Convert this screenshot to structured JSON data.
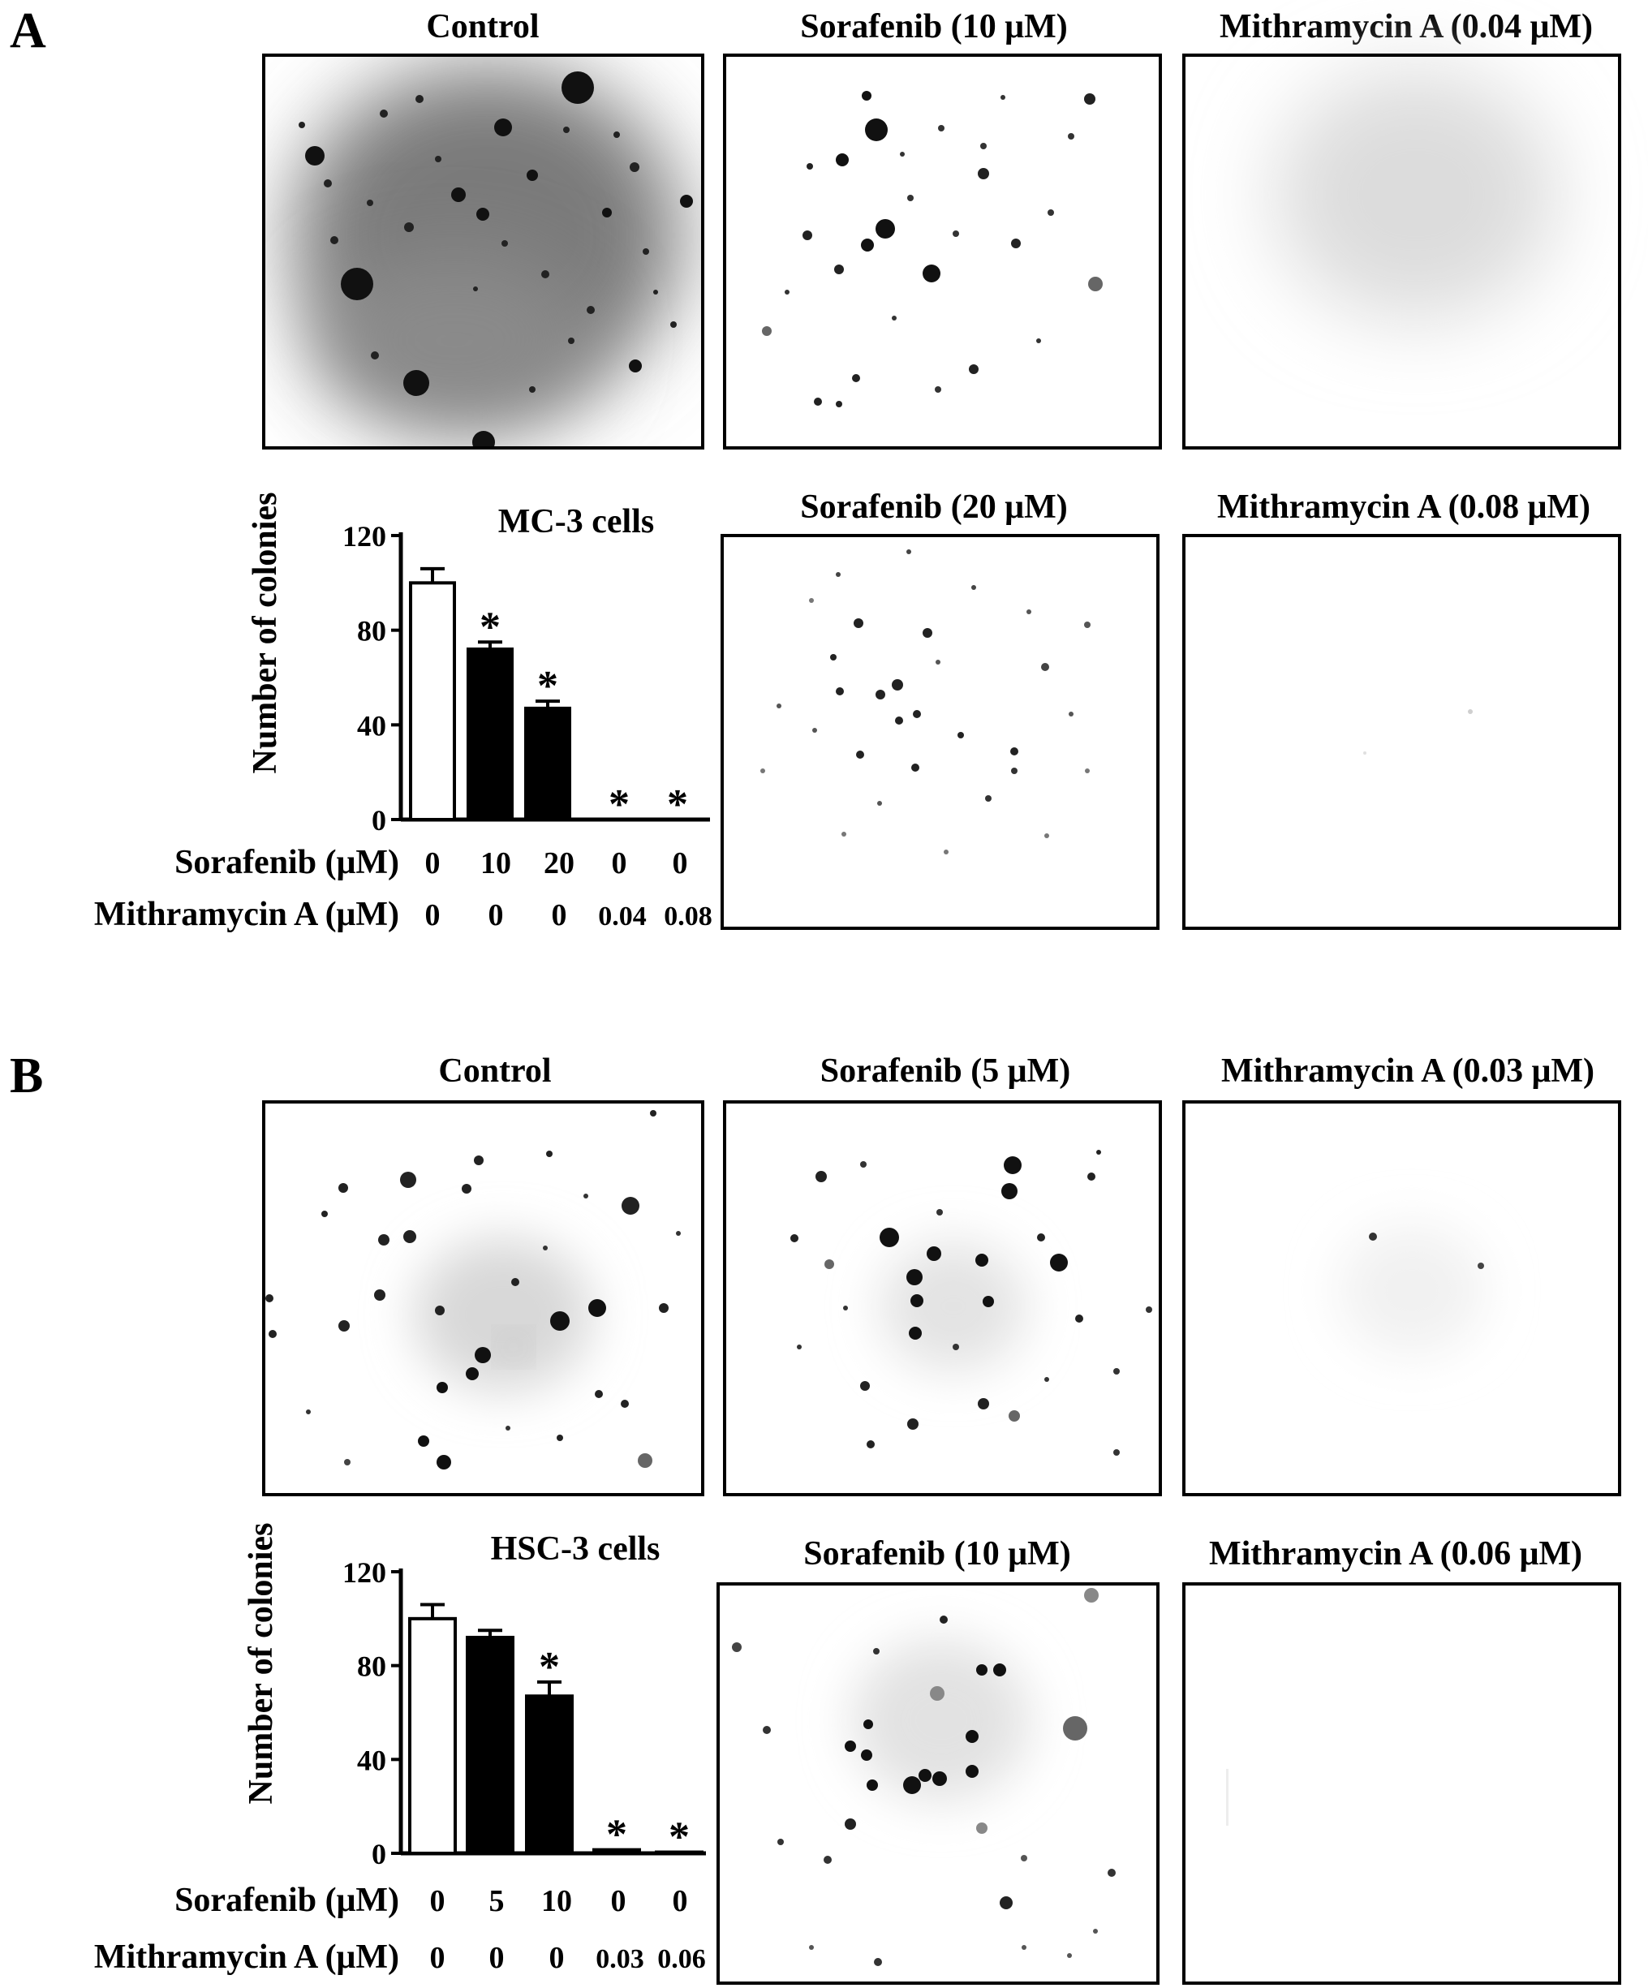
{
  "panels": [
    {
      "letter": "A",
      "cell_line": "MC-3 cells",
      "images": [
        {
          "title": "Control"
        },
        {
          "title": "Sorafenib (10 μM)"
        },
        {
          "title": "Mithramycin A (0.04 μM)"
        },
        {
          "title": "Sorafenib (20 μM)"
        },
        {
          "title": "Mithramycin A (0.08 μM)"
        }
      ],
      "row_labels": [
        "Sorafenib (μM)",
        "Mithramycin A (μM)"
      ],
      "sorafenib_doses": [
        "0",
        "10",
        "20",
        "0",
        "0"
      ],
      "mithramycin_doses": [
        "0",
        "0",
        "0",
        "0.04",
        "0.08"
      ]
    },
    {
      "letter": "B",
      "cell_line": "HSC-3 cells",
      "images": [
        {
          "title": "Control"
        },
        {
          "title": "Sorafenib (5 μM)"
        },
        {
          "title": "Mithramycin A (0.03 μM)"
        },
        {
          "title": "Sorafenib (10 μM)"
        },
        {
          "title": "Mithramycin A (0.06 μM)"
        }
      ],
      "row_labels": [
        "Sorafenib (μM)",
        "Mithramycin A (μM)"
      ],
      "sorafenib_doses": [
        "0",
        "5",
        "10",
        "0",
        "0"
      ],
      "mithramycin_doses": [
        "0",
        "0",
        "0",
        "0.03",
        "0.06"
      ]
    }
  ],
  "chart_data": [
    {
      "type": "bar",
      "title": "MC-3 cells",
      "ylabel": "Number of colonies",
      "ylim": [
        0,
        120
      ],
      "yticks": [
        "0",
        "40",
        "80",
        "120"
      ],
      "values": [
        100,
        72,
        47,
        0,
        0
      ],
      "errors": [
        6,
        3,
        3,
        0,
        0
      ],
      "significant": [
        false,
        true,
        true,
        true,
        true
      ],
      "significance_marker": "*",
      "bar_colors": [
        "#ffffff",
        "#000000",
        "#000000",
        "#000000",
        "#000000"
      ]
    },
    {
      "type": "bar",
      "title": "HSC-3 cells",
      "ylabel": "Number of colonies",
      "ylim": [
        0,
        120
      ],
      "yticks": [
        "0",
        "40",
        "80",
        "120"
      ],
      "values": [
        100,
        92,
        67,
        1.5,
        0.5
      ],
      "errors": [
        6,
        3,
        6,
        0,
        0
      ],
      "significant": [
        false,
        false,
        true,
        true,
        true
      ],
      "significance_marker": "*",
      "bar_colors": [
        "#ffffff",
        "#000000",
        "#000000",
        "#000000",
        "#000000"
      ]
    }
  ]
}
